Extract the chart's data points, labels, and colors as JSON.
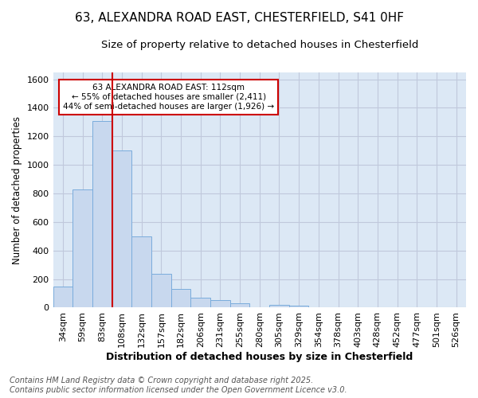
{
  "title": "63, ALEXANDRA ROAD EAST, CHESTERFIELD, S41 0HF",
  "subtitle": "Size of property relative to detached houses in Chesterfield",
  "xlabel": "Distribution of detached houses by size in Chesterfield",
  "ylabel": "Number of detached properties",
  "categories": [
    "34sqm",
    "59sqm",
    "83sqm",
    "108sqm",
    "132sqm",
    "157sqm",
    "182sqm",
    "206sqm",
    "231sqm",
    "255sqm",
    "280sqm",
    "305sqm",
    "329sqm",
    "354sqm",
    "378sqm",
    "403sqm",
    "428sqm",
    "452sqm",
    "477sqm",
    "501sqm",
    "526sqm"
  ],
  "values": [
    150,
    830,
    1305,
    1100,
    500,
    235,
    130,
    70,
    50,
    30,
    0,
    20,
    15,
    0,
    0,
    0,
    0,
    0,
    0,
    0,
    0
  ],
  "bar_color": "#c8d8ee",
  "bar_edge_color": "#7aacdc",
  "vline_color": "#cc0000",
  "vline_x_index": 3,
  "annotation_text": "63 ALEXANDRA ROAD EAST: 112sqm\n← 55% of detached houses are smaller (2,411)\n44% of semi-detached houses are larger (1,926) →",
  "annotation_box_facecolor": "white",
  "annotation_box_edgecolor": "#cc0000",
  "ylim": [
    0,
    1650
  ],
  "yticks": [
    0,
    200,
    400,
    600,
    800,
    1000,
    1200,
    1400,
    1600
  ],
  "grid_color": "#c0c8dc",
  "bg_color": "#dce8f5",
  "footer": "Contains HM Land Registry data © Crown copyright and database right 2025.\nContains public sector information licensed under the Open Government Licence v3.0.",
  "title_fontsize": 11,
  "subtitle_fontsize": 9.5,
  "xlabel_fontsize": 9,
  "ylabel_fontsize": 8.5,
  "tick_fontsize": 8,
  "footer_fontsize": 7,
  "annotation_fontsize": 7.5
}
